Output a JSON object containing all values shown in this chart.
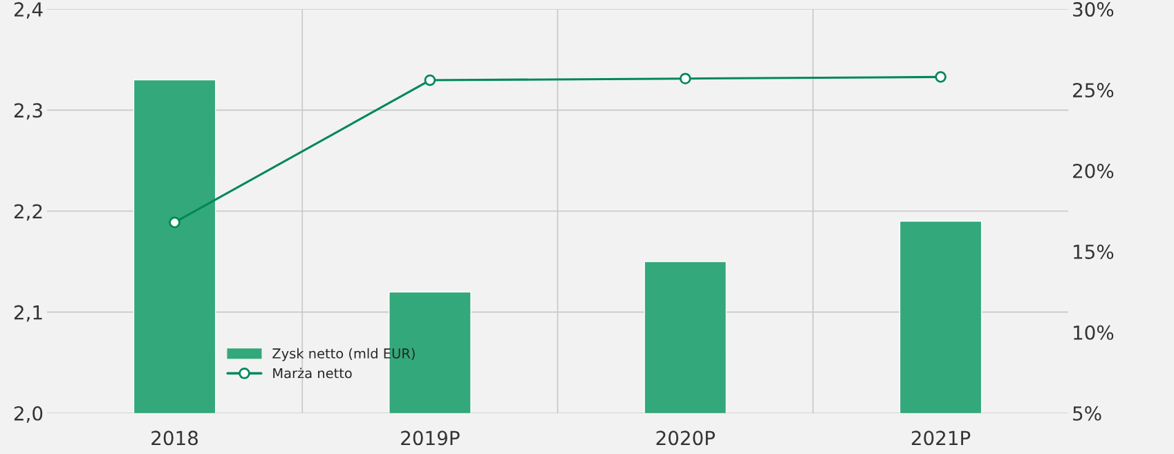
{
  "chart_data": {
    "type": "bar",
    "categories": [
      "2018",
      "2019P",
      "2020P",
      "2021P"
    ],
    "series": [
      {
        "name": "Zysk netto (mld EUR)",
        "color": "#33a87b",
        "values": [
          2.33,
          2.12,
          2.15,
          2.19
        ]
      },
      {
        "name": "Marża netto",
        "type": "line",
        "axis": "y2",
        "color": "#00875a",
        "marker": "circle",
        "values": [
          16.8,
          25.6,
          25.7,
          25.8
        ]
      }
    ],
    "ylim": [
      2.0,
      2.4
    ],
    "yticks": [
      {
        "value": 2.0,
        "label": "2,0"
      },
      {
        "value": 2.1,
        "label": "2,1"
      },
      {
        "value": 2.2,
        "label": "2,2"
      },
      {
        "value": 2.3,
        "label": "2,3"
      },
      {
        "value": 2.4,
        "label": "2,4"
      }
    ],
    "y2lim": [
      5,
      30
    ],
    "y2ticks": [
      {
        "value": 5,
        "label": "5%"
      },
      {
        "value": 10,
        "label": "10%"
      },
      {
        "value": 15,
        "label": "15%"
      },
      {
        "value": 20,
        "label": "20%"
      },
      {
        "value": 25,
        "label": "25%"
      },
      {
        "value": 30,
        "label": "30%"
      }
    ],
    "grid": true,
    "legend": "bottom left"
  }
}
